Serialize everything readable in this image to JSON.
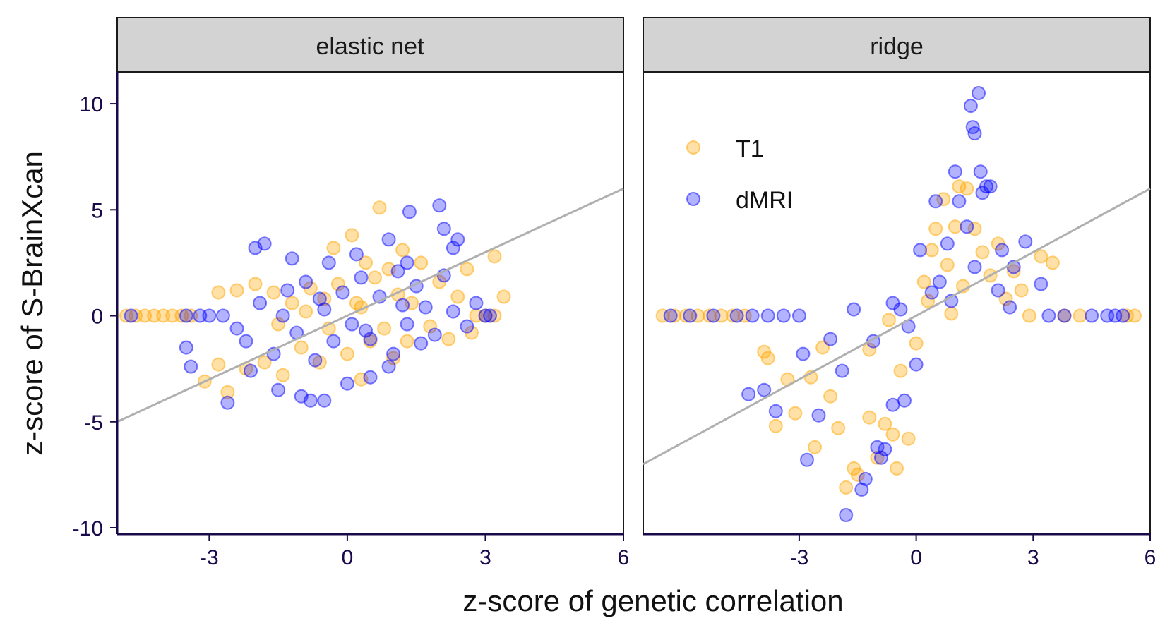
{
  "axes": {
    "xlabel": "z-score of genetic correlation",
    "ylabel": "z-score of S-BrainXcan"
  },
  "legend": {
    "placement": "top-left (ridge panel)",
    "entries": [
      {
        "label": "T1",
        "color": "#FFA500"
      },
      {
        "label": "dMRI",
        "color": "#0000FF"
      }
    ]
  },
  "colors": {
    "T1": "#FFA500",
    "dMRI": "#0000FF",
    "fit_line": "#b0b0b0",
    "strip": "#d3d3d3"
  },
  "chart_data": [
    {
      "type": "scatter",
      "panel": "elastic net",
      "xlim": [
        -5,
        6
      ],
      "ylim": [
        -10.3,
        11.5
      ],
      "xticks": [
        -3,
        0,
        3,
        6
      ],
      "yticks": [
        -10,
        -5,
        0,
        5,
        10
      ],
      "grid": false,
      "fit_line": {
        "slope": 1.0,
        "intercept": 0.0
      },
      "series": [
        {
          "name": "T1",
          "color": "#FFA500",
          "points": [
            [
              -4.8,
              0
            ],
            [
              -4.6,
              0
            ],
            [
              -4.4,
              0
            ],
            [
              -4.2,
              0
            ],
            [
              -4,
              0
            ],
            [
              -3.8,
              0
            ],
            [
              -3.6,
              0
            ],
            [
              -3.4,
              0
            ],
            [
              -3.1,
              -3.1
            ],
            [
              -2.8,
              -2.3
            ],
            [
              -2.6,
              -3.6
            ],
            [
              -2.8,
              1.1
            ],
            [
              -2.4,
              1.2
            ],
            [
              -2.2,
              -2.5
            ],
            [
              -2,
              1.5
            ],
            [
              -1.8,
              -2.2
            ],
            [
              -1.6,
              1.1
            ],
            [
              -1.4,
              -2.8
            ],
            [
              -1.2,
              0.6
            ],
            [
              -1,
              -1.5
            ],
            [
              -0.8,
              1.3
            ],
            [
              -0.6,
              -2.2
            ],
            [
              -0.5,
              0.8
            ],
            [
              -0.3,
              3.2
            ],
            [
              -0.2,
              1.5
            ],
            [
              0,
              -1.8
            ],
            [
              0.1,
              3.8
            ],
            [
              0.2,
              0.6
            ],
            [
              0.3,
              -3
            ],
            [
              0.4,
              2.5
            ],
            [
              0.5,
              -1.2
            ],
            [
              0.6,
              1.8
            ],
            [
              0.7,
              5.1
            ],
            [
              0.8,
              -0.6
            ],
            [
              0.9,
              2.2
            ],
            [
              1,
              -2
            ],
            [
              1.1,
              1
            ],
            [
              1.2,
              3.1
            ],
            [
              1.3,
              -1.2
            ],
            [
              1.4,
              0.6
            ],
            [
              1.6,
              2.5
            ],
            [
              1.8,
              -0.5
            ],
            [
              2,
              1.6
            ],
            [
              2.2,
              -1.1
            ],
            [
              2.4,
              0.9
            ],
            [
              2.6,
              2.2
            ],
            [
              2.8,
              0
            ],
            [
              3.0,
              0
            ],
            [
              3.2,
              0
            ],
            [
              3.4,
              0.9
            ],
            [
              3.2,
              2.8
            ],
            [
              2.7,
              -0.8
            ],
            [
              -1.5,
              -0.4
            ],
            [
              -0.9,
              0.2
            ],
            [
              0.3,
              0.4
            ],
            [
              -0.4,
              -0.6
            ]
          ]
        },
        {
          "name": "dMRI",
          "color": "#0000FF",
          "points": [
            [
              -4.7,
              0
            ],
            [
              -3.5,
              0
            ],
            [
              -3.2,
              0
            ],
            [
              -3.0,
              0
            ],
            [
              -2.7,
              0
            ],
            [
              -3.5,
              -1.5
            ],
            [
              -3.4,
              -2.4
            ],
            [
              -2.6,
              -4.1
            ],
            [
              -2,
              3.2
            ],
            [
              -1.8,
              3.4
            ],
            [
              -1.5,
              -3.5
            ],
            [
              -1.2,
              2.7
            ],
            [
              -1,
              -3.8
            ],
            [
              -0.8,
              -4
            ],
            [
              -0.5,
              -4
            ],
            [
              -0.4,
              2.5
            ],
            [
              0,
              -3.2
            ],
            [
              0.2,
              2.9
            ],
            [
              0.5,
              -2.9
            ],
            [
              0.9,
              3.6
            ],
            [
              1,
              -1.8
            ],
            [
              1.3,
              2.5
            ],
            [
              1.35,
              4.9
            ],
            [
              1.6,
              -1.3
            ],
            [
              2,
              5.2
            ],
            [
              2.1,
              4.1
            ],
            [
              2.3,
              3.2
            ],
            [
              2.4,
              3.6
            ],
            [
              2.6,
              -0.5
            ],
            [
              2.8,
              0.6
            ],
            [
              3,
              0
            ],
            [
              3.1,
              0
            ],
            [
              -2.2,
              -1.2
            ],
            [
              -1.9,
              0.6
            ],
            [
              -1.6,
              -1.8
            ],
            [
              -1.3,
              1.2
            ],
            [
              -1.1,
              -0.8
            ],
            [
              -0.9,
              1.6
            ],
            [
              -0.7,
              -2.1
            ],
            [
              -0.5,
              0.3
            ],
            [
              -0.3,
              -1.2
            ],
            [
              -0.1,
              1.1
            ],
            [
              0.1,
              -0.4
            ],
            [
              0.3,
              1.8
            ],
            [
              0.5,
              -1.1
            ],
            [
              0.7,
              0.9
            ],
            [
              0.9,
              -2.4
            ],
            [
              1.1,
              2.1
            ],
            [
              1.3,
              -0.4
            ],
            [
              1.5,
              1.4
            ],
            [
              1.7,
              0.4
            ],
            [
              1.9,
              -0.9
            ],
            [
              2.1,
              1.9
            ],
            [
              2.3,
              0.2
            ],
            [
              -1.4,
              0
            ],
            [
              -0.6,
              0.8
            ],
            [
              0.4,
              -0.7
            ],
            [
              1.2,
              0.5
            ],
            [
              -2.4,
              -0.6
            ],
            [
              -2.1,
              -2.6
            ]
          ]
        }
      ]
    },
    {
      "type": "scatter",
      "panel": "ridge",
      "xlim": [
        -7,
        6
      ],
      "ylim": [
        -10.3,
        11.5
      ],
      "xticks": [
        -3,
        0,
        3,
        6
      ],
      "yticks": [
        -10,
        -5,
        0,
        5,
        10
      ],
      "grid": false,
      "fit_line": {
        "slope": 1.0,
        "intercept": 0.0
      },
      "series": [
        {
          "name": "T1",
          "color": "#FFA500",
          "points": [
            [
              -6.5,
              0
            ],
            [
              -6.2,
              0
            ],
            [
              -5.9,
              0
            ],
            [
              -5.6,
              0
            ],
            [
              -5.3,
              0
            ],
            [
              -5.0,
              0
            ],
            [
              -4.7,
              0
            ],
            [
              -4.4,
              0
            ],
            [
              -3.9,
              -1.7
            ],
            [
              -3.8,
              -2
            ],
            [
              -3.6,
              -5.2
            ],
            [
              -3.3,
              -3
            ],
            [
              -2.6,
              -6.2
            ],
            [
              -2.4,
              -1.5
            ],
            [
              -2.2,
              -3.8
            ],
            [
              -2,
              -5.3
            ],
            [
              -1.8,
              -8.1
            ],
            [
              -1.6,
              -7.2
            ],
            [
              -1.5,
              -7.5
            ],
            [
              -1.2,
              -4.8
            ],
            [
              -1,
              -6.7
            ],
            [
              -0.8,
              -5.1
            ],
            [
              -0.6,
              -5.6
            ],
            [
              -0.5,
              -7.2
            ],
            [
              -0.4,
              -2.6
            ],
            [
              -0.2,
              -5.8
            ],
            [
              0,
              -1.3
            ],
            [
              0.2,
              1.6
            ],
            [
              0.4,
              3.1
            ],
            [
              0.5,
              4.1
            ],
            [
              0.7,
              5.5
            ],
            [
              0.8,
              2.4
            ],
            [
              1,
              4.2
            ],
            [
              1.1,
              6.1
            ],
            [
              1.3,
              6
            ],
            [
              1.5,
              4.1
            ],
            [
              1.7,
              3
            ],
            [
              1.9,
              1.9
            ],
            [
              2.1,
              3.4
            ],
            [
              2.3,
              0.8
            ],
            [
              2.5,
              2.1
            ],
            [
              2.7,
              1.2
            ],
            [
              2.9,
              0
            ],
            [
              3.2,
              2.8
            ],
            [
              3.5,
              2.5
            ],
            [
              3.8,
              0
            ],
            [
              4.2,
              0
            ],
            [
              5.4,
              0
            ],
            [
              5.6,
              0
            ],
            [
              -1.2,
              -1.6
            ],
            [
              -0.7,
              -0.2
            ],
            [
              0.3,
              0.7
            ],
            [
              1.2,
              1.4
            ],
            [
              -2.7,
              -2.9
            ],
            [
              -3.1,
              -4.6
            ],
            [
              0.9,
              0.1
            ]
          ]
        },
        {
          "name": "dMRI",
          "color": "#0000FF",
          "points": [
            [
              -6.3,
              0
            ],
            [
              -5.8,
              0
            ],
            [
              -5.2,
              0
            ],
            [
              -4.6,
              0
            ],
            [
              -4.2,
              0
            ],
            [
              -3.8,
              0
            ],
            [
              -3.4,
              0
            ],
            [
              -3.0,
              0
            ],
            [
              -4.3,
              -3.7
            ],
            [
              -3.9,
              -3.5
            ],
            [
              -3.6,
              -4.5
            ],
            [
              -2.8,
              -6.8
            ],
            [
              -2.5,
              -4.7
            ],
            [
              -1.8,
              -9.4
            ],
            [
              -1.4,
              -8.2
            ],
            [
              -1.3,
              -7.7
            ],
            [
              -1,
              -6.2
            ],
            [
              -0.9,
              -6.7
            ],
            [
              -0.8,
              -6.3
            ],
            [
              -0.6,
              -4.2
            ],
            [
              -0.3,
              -4
            ],
            [
              0,
              -2.3
            ],
            [
              0.1,
              3.1
            ],
            [
              0.5,
              5.4
            ],
            [
              0.8,
              3.4
            ],
            [
              1,
              6.8
            ],
            [
              1.1,
              5.4
            ],
            [
              1.3,
              4.2
            ],
            [
              1.4,
              9.9
            ],
            [
              1.45,
              8.9
            ],
            [
              1.5,
              8.6
            ],
            [
              1.6,
              10.5
            ],
            [
              1.65,
              6.8
            ],
            [
              1.7,
              5.8
            ],
            [
              1.8,
              6.1
            ],
            [
              1.9,
              6.1
            ],
            [
              2.2,
              3.1
            ],
            [
              2.5,
              2.3
            ],
            [
              2.8,
              3.5
            ],
            [
              3.2,
              1.5
            ],
            [
              3.4,
              0
            ],
            [
              3.8,
              0
            ],
            [
              4.5,
              0
            ],
            [
              4.9,
              0
            ],
            [
              5.1,
              0
            ],
            [
              5.3,
              0
            ],
            [
              -2.2,
              -1.1
            ],
            [
              -1.6,
              0.3
            ],
            [
              -1.1,
              -1.2
            ],
            [
              -0.6,
              0.6
            ],
            [
              -0.2,
              -0.5
            ],
            [
              0.4,
              1.1
            ],
            [
              0.9,
              0.7
            ],
            [
              1.5,
              2.3
            ],
            [
              2.1,
              1.2
            ],
            [
              -1.9,
              -2.6
            ],
            [
              -0.4,
              0.3
            ],
            [
              0.6,
              1.6
            ],
            [
              2.4,
              0.4
            ],
            [
              -2.9,
              -1.8
            ]
          ]
        }
      ]
    }
  ]
}
